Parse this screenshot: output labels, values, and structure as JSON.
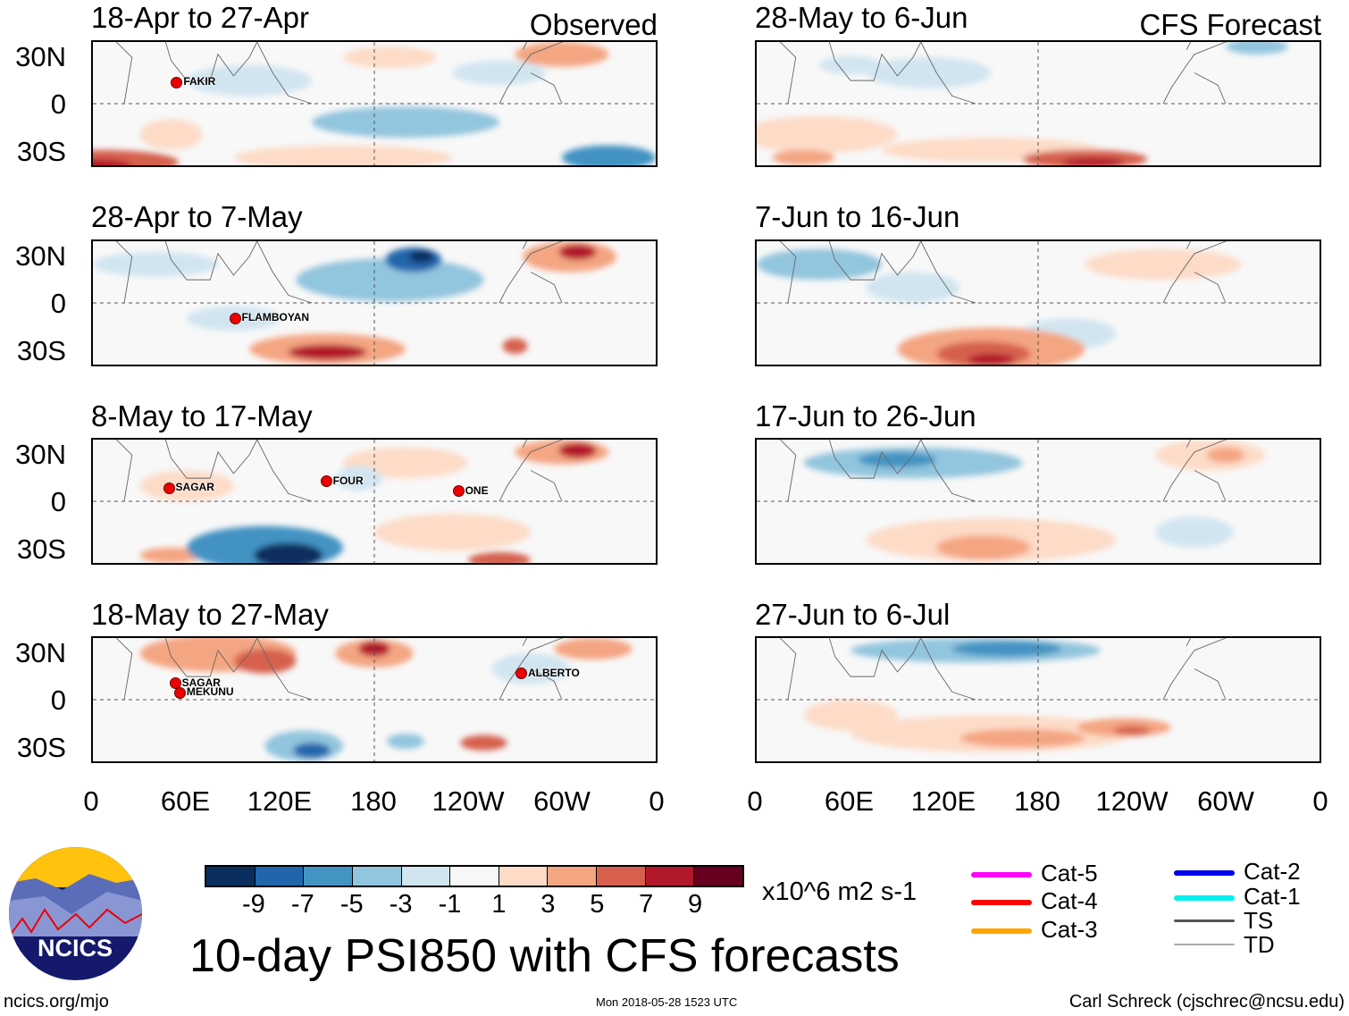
{
  "panels_left": [
    {
      "title": "18-Apr to 27-Apr",
      "tag": "Observed",
      "storms": [
        {
          "name": "FAKIR"
        }
      ]
    },
    {
      "title": "28-Apr to 7-May",
      "storms": [
        {
          "name": "FLAMBOYAN"
        }
      ]
    },
    {
      "title": "8-May to 17-May",
      "storms": [
        {
          "name": "SAGAR"
        },
        {
          "name": "FOUR"
        },
        {
          "name": "ONE"
        }
      ]
    },
    {
      "title": "18-May to 27-May",
      "storms": [
        {
          "name": "SAGAR"
        },
        {
          "name": "MEKUNU"
        },
        {
          "name": "ALBERTO"
        }
      ]
    }
  ],
  "panels_right": [
    {
      "title": "28-May to 6-Jun",
      "tag": "CFS Forecast"
    },
    {
      "title": "7-Jun to 16-Jun"
    },
    {
      "title": "17-Jun to 26-Jun"
    },
    {
      "title": "27-Jun to 6-Jul"
    }
  ],
  "lat_labels": [
    "30N",
    "0",
    "30S"
  ],
  "lon_labels": [
    "0",
    "60E",
    "120E",
    "180",
    "120W",
    "60W",
    "0"
  ],
  "colorbar": {
    "labels": [
      "-9",
      "-7",
      "-5",
      "-3",
      "-1",
      "1",
      "3",
      "5",
      "7",
      "9"
    ],
    "colors": [
      "#0a2f5f",
      "#2166ac",
      "#4393c3",
      "#92c5de",
      "#d1e5f0",
      "#f7f7f7",
      "#fddbc7",
      "#f4a582",
      "#d6604d",
      "#b2182b",
      "#67001f"
    ],
    "units": "x10^6 m2 s-1"
  },
  "legend": [
    {
      "label": "Cat-5",
      "color": "#ff00ff"
    },
    {
      "label": "Cat-4",
      "color": "#ff0000"
    },
    {
      "label": "Cat-3",
      "color": "#ffa500"
    },
    {
      "label": "Cat-2",
      "color": "#0000ee"
    },
    {
      "label": "Cat-1",
      "color": "#00eeee"
    },
    {
      "label": "TS",
      "color": "#555555"
    },
    {
      "label": "TD",
      "color": "#aaaaaa"
    }
  ],
  "title": "10-day PSI850 with CFS forecasts",
  "logo_text": "NCICS",
  "footer": {
    "left": "ncics.org/mjo",
    "center": "Mon 2018-05-28 1523 UTC",
    "right": "Carl Schreck (cjschrec@ncsu.edu)"
  }
}
